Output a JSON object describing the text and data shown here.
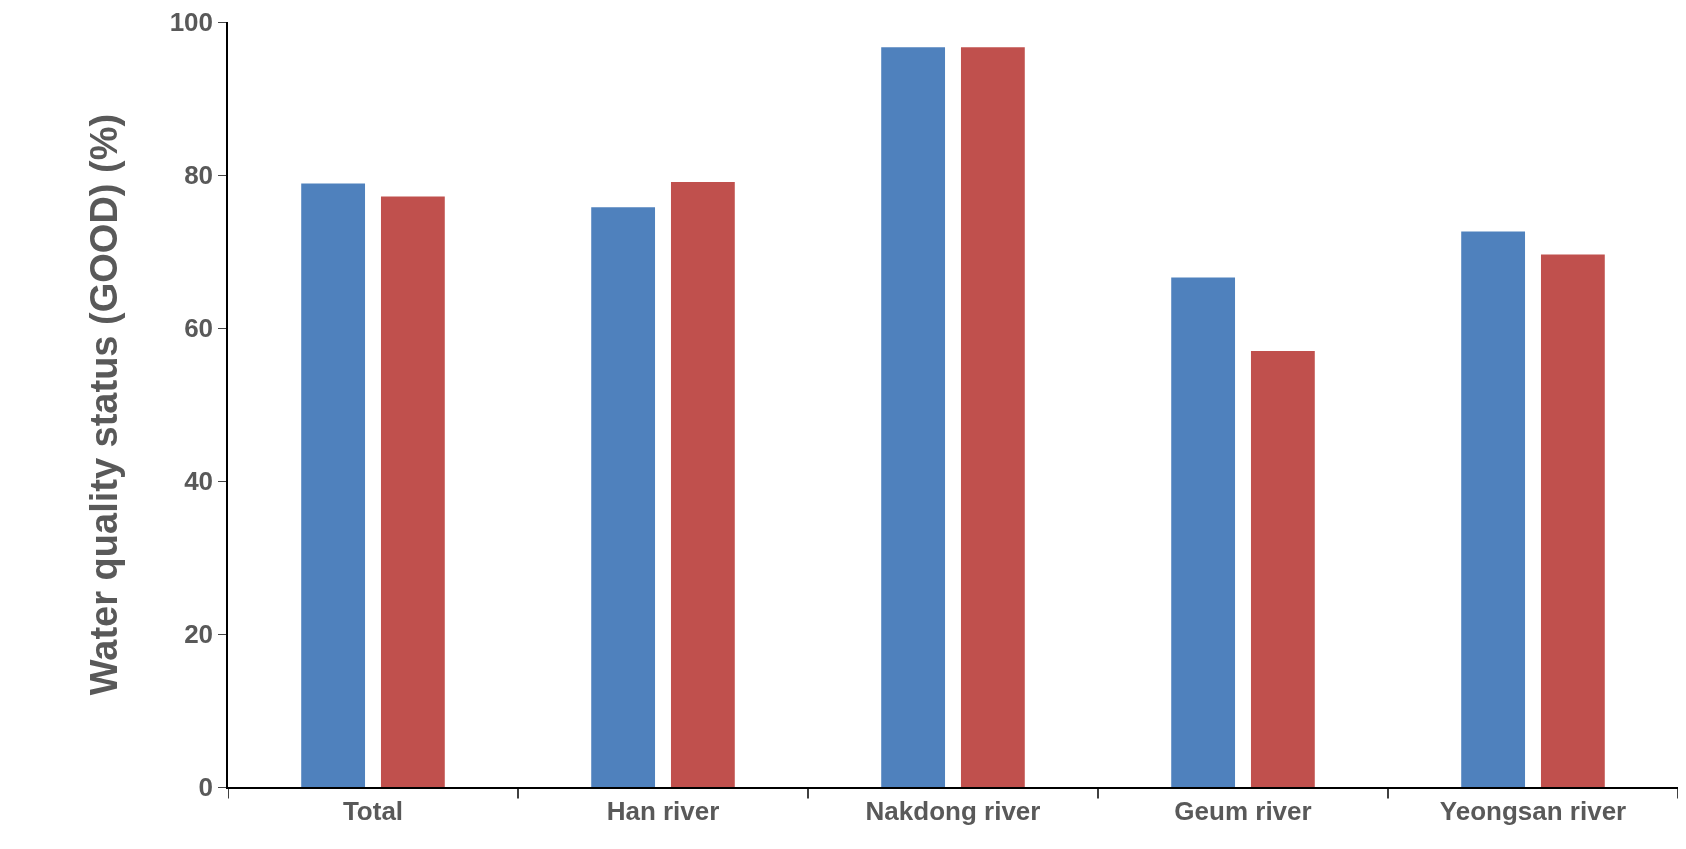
{
  "chart_data": {
    "type": "bar",
    "ylabel": "Water quality status (GOOD) (%)",
    "categories": [
      "Total",
      "Han river",
      "Nakdong river",
      "Geum river",
      "Yeongsan river"
    ],
    "series": [
      {
        "color": "#4f81bd",
        "values": [
          78.9,
          75.8,
          96.7,
          66.6,
          72.6
        ]
      },
      {
        "color": "#c0504d",
        "values": [
          77.2,
          79.1,
          96.7,
          57.0,
          69.6
        ]
      }
    ],
    "ylim": [
      0,
      100
    ],
    "yticks": [
      0,
      20,
      40,
      60,
      80,
      100
    ]
  }
}
